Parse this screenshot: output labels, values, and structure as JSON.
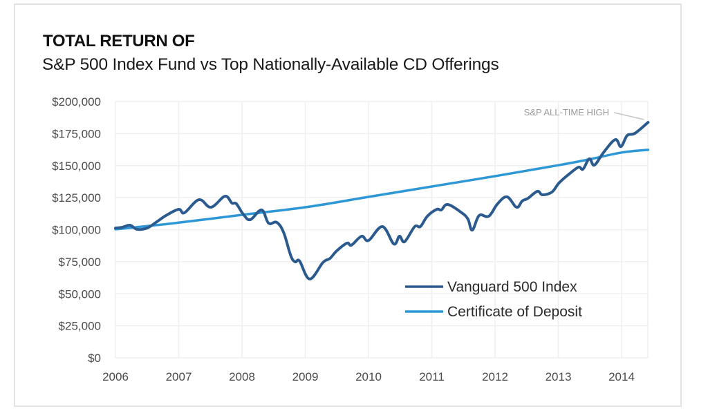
{
  "chart_data": {
    "type": "line",
    "title": "TOTAL RETURN OF",
    "subtitle": "S&P 500 Index Fund vs Top Nationally-Available CD Offerings",
    "xlabel": "",
    "ylabel": "",
    "xlim": [
      2006,
      2014.42
    ],
    "ylim": [
      0,
      200000
    ],
    "grid": true,
    "legend_position": "bottom-right",
    "x_ticks": [
      2006,
      2007,
      2008,
      2009,
      2010,
      2011,
      2012,
      2013,
      2014
    ],
    "x_tick_labels": [
      "2006",
      "2007",
      "2008",
      "2009",
      "2010",
      "2011",
      "2012",
      "2013",
      "2014"
    ],
    "y_ticks": [
      0,
      25000,
      50000,
      75000,
      100000,
      125000,
      150000,
      175000,
      200000
    ],
    "y_tick_labels": [
      "$0",
      "$25,000",
      "$50,000",
      "$75,000",
      "$100,000",
      "$125,000",
      "$150,000",
      "$175,000",
      "$200,000"
    ],
    "annotation": {
      "text": "S&P ALL-TIME HIGH",
      "x": 2014.42,
      "y": 183800
    },
    "series": [
      {
        "name": "Vanguard 500 Index",
        "color": "#2b5a8e",
        "x": [
          2006.0,
          2006.11,
          2006.23,
          2006.34,
          2006.5,
          2006.64,
          2006.8,
          2007.0,
          2007.09,
          2007.32,
          2007.51,
          2007.73,
          2007.84,
          2007.91,
          2008.02,
          2008.13,
          2008.31,
          2008.42,
          2008.55,
          2008.66,
          2008.77,
          2008.84,
          2008.91,
          2009.07,
          2009.28,
          2009.39,
          2009.5,
          2009.66,
          2009.73,
          2009.89,
          2010.0,
          2010.22,
          2010.4,
          2010.49,
          2010.57,
          2010.73,
          2010.82,
          2010.93,
          2011.08,
          2011.15,
          2011.25,
          2011.46,
          2011.57,
          2011.64,
          2011.75,
          2011.9,
          2012.04,
          2012.19,
          2012.34,
          2012.43,
          2012.52,
          2012.67,
          2012.75,
          2012.9,
          2013.01,
          2013.17,
          2013.32,
          2013.39,
          2013.49,
          2013.57,
          2013.72,
          2013.9,
          2013.99,
          2014.09,
          2014.21,
          2014.42
        ],
        "values": [
          101300,
          101900,
          103500,
          100300,
          101300,
          105700,
          111100,
          115900,
          113200,
          123400,
          117500,
          126100,
          120800,
          120200,
          112100,
          107800,
          115400,
          105100,
          105700,
          97600,
          79800,
          74900,
          75500,
          61500,
          74400,
          77600,
          83600,
          89500,
          87900,
          94900,
          91600,
          102400,
          88900,
          94900,
          90600,
          102400,
          102400,
          110500,
          115900,
          115400,
          119700,
          113700,
          108400,
          99700,
          111100,
          110500,
          120200,
          125600,
          117500,
          122400,
          124500,
          129900,
          127200,
          129400,
          136400,
          143400,
          148800,
          147200,
          155300,
          150400,
          160600,
          170300,
          164900,
          173600,
          175200,
          183800
        ]
      },
      {
        "name": "Certificate of Deposit",
        "color": "#2e97d6",
        "x": [
          2006,
          2007,
          2008,
          2009,
          2010,
          2011,
          2012,
          2013,
          2013.5,
          2014,
          2014.42
        ],
        "values": [
          100300,
          105500,
          111600,
          117500,
          125600,
          133700,
          141800,
          150300,
          155000,
          160200,
          162300
        ]
      }
    ]
  }
}
